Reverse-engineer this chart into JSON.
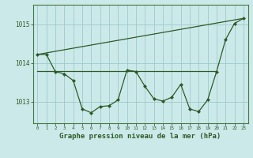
{
  "background_color": "#cce9e9",
  "grid_color": "#99cccc",
  "line_color": "#2d5a27",
  "marker_color": "#2d5a27",
  "xlabel": "Graphe pression niveau de la mer (hPa)",
  "xlabel_fontsize": 6.5,
  "ylabel_ticks": [
    1013,
    1014,
    1015
  ],
  "xlim": [
    -0.5,
    23.5
  ],
  "ylim": [
    1012.45,
    1015.5
  ],
  "x_ticks": [
    0,
    1,
    2,
    3,
    4,
    5,
    6,
    7,
    8,
    9,
    10,
    11,
    12,
    13,
    14,
    15,
    16,
    17,
    18,
    19,
    20,
    21,
    22,
    23
  ],
  "line1_x": [
    0,
    1,
    2,
    3,
    4,
    5,
    6,
    7,
    8,
    9,
    10,
    11,
    12,
    13,
    14,
    15,
    16,
    17,
    18,
    19,
    20,
    21,
    22,
    23
  ],
  "line1_y": [
    1014.22,
    1014.22,
    1013.78,
    1013.72,
    1013.55,
    1012.82,
    1012.72,
    1012.88,
    1012.9,
    1013.05,
    1013.82,
    1013.78,
    1013.4,
    1013.08,
    1013.02,
    1013.12,
    1013.45,
    1012.82,
    1012.75,
    1013.05,
    1013.78,
    1014.6,
    1015.02,
    1015.15
  ],
  "line2_x": [
    0,
    20
  ],
  "line2_y": [
    1013.8,
    1013.8
  ],
  "line3_x": [
    0,
    23
  ],
  "line3_y": [
    1014.22,
    1015.15
  ]
}
